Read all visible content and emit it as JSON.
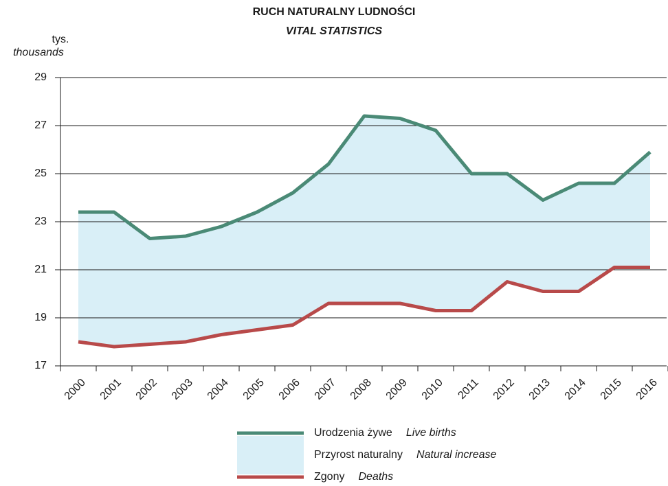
{
  "chart_data": {
    "type": "line",
    "title": "RUCH  NATURALNY  LUDNOŚCI",
    "subtitle": "VITAL  STATISTICS",
    "y_label": "tys.",
    "y_label_en": "thousands",
    "categories": [
      "2000",
      "2001",
      "2002",
      "2003",
      "2004",
      "2005",
      "2006",
      "2007",
      "2008",
      "2009",
      "2010",
      "2011",
      "2012",
      "2013",
      "2014",
      "2015",
      "2016"
    ],
    "series": [
      {
        "name": "Urodzenia żywe",
        "name_en": "Live births",
        "color": "#4a8a76",
        "values": [
          23.4,
          23.4,
          22.3,
          22.4,
          22.8,
          23.4,
          24.2,
          25.4,
          27.4,
          27.3,
          26.8,
          25.0,
          25.0,
          23.9,
          24.6,
          24.6,
          25.9
        ]
      },
      {
        "name": "Zgony",
        "name_en": "Deaths",
        "color": "#b84a4a",
        "values": [
          18.0,
          17.8,
          17.9,
          18.0,
          18.3,
          18.5,
          18.7,
          19.6,
          19.6,
          19.6,
          19.3,
          19.3,
          20.5,
          20.1,
          20.1,
          21.1,
          21.1
        ]
      }
    ],
    "area": {
      "name": "Przyrost naturalny",
      "name_en": "Natural increase",
      "color": "#d9eff7"
    },
    "ylim": [
      17,
      29
    ],
    "yticks": [
      17,
      19,
      21,
      23,
      25,
      27,
      29
    ],
    "grid": true
  }
}
